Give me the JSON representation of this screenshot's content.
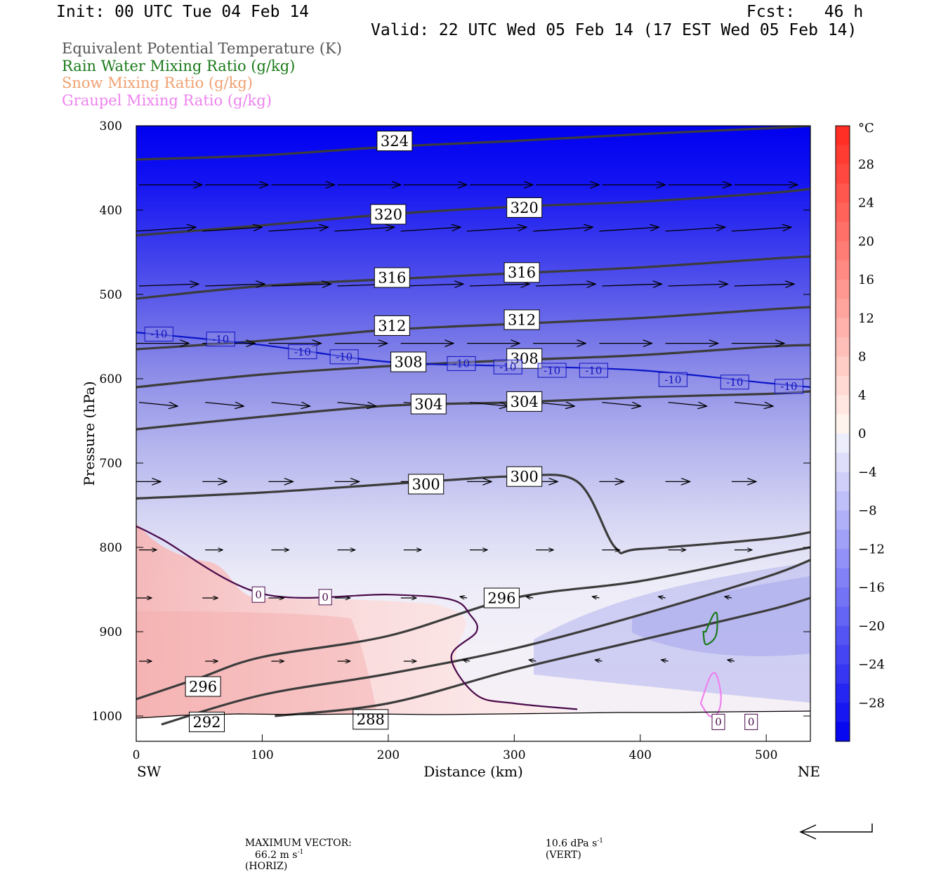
{
  "header": {
    "init": "Init: 00 UTC Tue 04 Feb 14",
    "fcst": "Fcst:   46 h",
    "valid": "Valid: 22 UTC Wed 05 Feb 14 (17 EST Wed 05 Feb 14)"
  },
  "legend": [
    {
      "label": "Equivalent Potential Temperature (K)",
      "color": "#555555"
    },
    {
      "label": "Rain Water Mixing Ratio (g/kg)",
      "color": "#1a7a1a"
    },
    {
      "label": "Snow Mixing Ratio (g/kg)",
      "color": "#f0a070"
    },
    {
      "label": "Graupel Mixing Ratio (g/kg)",
      "color": "#ee82ee"
    }
  ],
  "chart_data": {
    "type": "heatmap",
    "xlabel": "Distance (km)",
    "ylabel": "Pressure (hPa)",
    "xlim": [
      0,
      535
    ],
    "ylim": [
      1030,
      300
    ],
    "x_ticks": [
      0,
      100,
      200,
      300,
      400,
      500
    ],
    "y_ticks": [
      300,
      400,
      500,
      600,
      700,
      800,
      900,
      1000
    ],
    "x_end_labels": {
      "left": "SW",
      "right": "NE"
    },
    "colorbar": {
      "unit": "°C",
      "ticks": [
        28,
        24,
        20,
        16,
        12,
        8,
        4,
        0,
        -4,
        -8,
        -12,
        -16,
        -20,
        -24,
        -28
      ]
    },
    "theta_e_contours": [
      {
        "value": 324,
        "x": [
          0,
          100,
          200,
          300,
          400,
          500,
          535
        ],
        "p": [
          340,
          335,
          325,
          318,
          310,
          303,
          300
        ]
      },
      {
        "value": 320,
        "x": [
          0,
          100,
          200,
          300,
          400,
          500,
          535
        ],
        "p": [
          430,
          418,
          405,
          396,
          390,
          380,
          375
        ]
      },
      {
        "value": 316,
        "x": [
          0,
          100,
          200,
          300,
          400,
          500,
          535
        ],
        "p": [
          505,
          490,
          482,
          475,
          468,
          458,
          455
        ]
      },
      {
        "value": 312,
        "x": [
          0,
          100,
          200,
          300,
          400,
          500,
          535
        ],
        "p": [
          565,
          555,
          542,
          535,
          528,
          518,
          515
        ]
      },
      {
        "value": 308,
        "x": [
          0,
          100,
          200,
          300,
          400,
          500,
          535
        ],
        "p": [
          610,
          595,
          585,
          578,
          572,
          562,
          560
        ]
      },
      {
        "value": 304,
        "x": [
          0,
          100,
          200,
          300,
          400,
          500,
          535
        ],
        "p": [
          660,
          645,
          632,
          628,
          622,
          618,
          615
        ]
      },
      {
        "value": 300,
        "x": [
          0,
          100,
          200,
          250,
          300,
          350,
          380,
          400,
          500,
          535
        ],
        "p": [
          742,
          735,
          725,
          720,
          716,
          722,
          800,
          802,
          790,
          782
        ]
      },
      {
        "value": 296,
        "x": [
          0,
          50,
          100,
          200,
          300,
          400,
          500,
          535
        ],
        "p": [
          980,
          955,
          930,
          905,
          860,
          840,
          810,
          800
        ]
      },
      {
        "value": 292,
        "x": [
          20,
          100,
          200,
          300,
          400,
          500,
          535
        ],
        "p": [
          1010,
          975,
          950,
          920,
          880,
          835,
          815
        ]
      },
      {
        "value": 288,
        "x": [
          110,
          200,
          300,
          400,
          500,
          535
        ],
        "p": [
          1000,
          985,
          945,
          910,
          875,
          860
        ]
      }
    ],
    "isotherm_0C": {
      "x": [
        0,
        20,
        100,
        200,
        250,
        265,
        270,
        250,
        270,
        300,
        350
      ],
      "p": [
        775,
        790,
        855,
        856,
        862,
        880,
        900,
        930,
        975,
        985,
        992
      ]
    },
    "isotherm_minus10C": {
      "x": [
        0,
        100,
        200,
        300,
        400,
        500,
        535
      ],
      "p": [
        545,
        560,
        580,
        585,
        590,
        605,
        610
      ]
    },
    "rain_water_contour": {
      "x": [
        452,
        458,
        461,
        460,
        452,
        450
      ],
      "p": [
        900,
        880,
        880,
        905,
        915,
        900
      ]
    },
    "graupel_contour": {
      "x": [
        448,
        455,
        460,
        464,
        462,
        455,
        448
      ],
      "p": [
        985,
        955,
        950,
        975,
        995,
        1000,
        985
      ]
    },
    "contour_labels": [
      {
        "text": "324",
        "x": 205,
        "p": 318
      },
      {
        "text": "320",
        "x": 200,
        "p": 405
      },
      {
        "text": "320",
        "x": 308,
        "p": 397
      },
      {
        "text": "316",
        "x": 203,
        "p": 480
      },
      {
        "text": "316",
        "x": 306,
        "p": 474
      },
      {
        "text": "312",
        "x": 203,
        "p": 537
      },
      {
        "text": "312",
        "x": 306,
        "p": 530
      },
      {
        "text": "308",
        "x": 216,
        "p": 580
      },
      {
        "text": "308",
        "x": 308,
        "p": 576
      },
      {
        "text": "304",
        "x": 232,
        "p": 630
      },
      {
        "text": "304",
        "x": 308,
        "p": 627
      },
      {
        "text": "300",
        "x": 230,
        "p": 725
      },
      {
        "text": "300",
        "x": 308,
        "p": 716
      },
      {
        "text": "296",
        "x": 290,
        "p": 860
      },
      {
        "text": "296",
        "x": 53,
        "p": 965
      },
      {
        "text": "292",
        "x": 56,
        "p": 1007
      },
      {
        "text": "288",
        "x": 186,
        "p": 1004
      },
      {
        "text": "0",
        "x": 97,
        "p": 856
      },
      {
        "text": "0",
        "x": 150,
        "p": 859
      },
      {
        "text": "0",
        "x": 462,
        "p": 1007
      },
      {
        "text": "0",
        "x": 488,
        "p": 1007
      },
      {
        "text": "-10",
        "x": 18,
        "p": 547
      },
      {
        "text": "-10",
        "x": 67,
        "p": 553
      },
      {
        "text": "-10",
        "x": 132,
        "p": 568
      },
      {
        "text": "-10",
        "x": 165,
        "p": 574
      },
      {
        "text": "-10",
        "x": 258,
        "p": 582
      },
      {
        "text": "-10",
        "x": 295,
        "p": 586
      },
      {
        "text": "-10",
        "x": 330,
        "p": 590
      },
      {
        "text": "-10",
        "x": 363,
        "p": 590
      },
      {
        "text": "-10",
        "x": 426,
        "p": 601
      },
      {
        "text": "-10",
        "x": 475,
        "p": 604
      },
      {
        "text": "-10",
        "x": 518,
        "p": 609
      }
    ]
  },
  "footer": {
    "max_vector_label": "MAXIMUM VECTOR:",
    "horiz_value": "66.2 m s",
    "horiz_unit_exp": "-1",
    "horiz_suffix": "(HORIZ)",
    "vert_value": "10.6 dPa s",
    "vert_unit_exp": "-1",
    "vert_suffix": "(VERT)"
  }
}
